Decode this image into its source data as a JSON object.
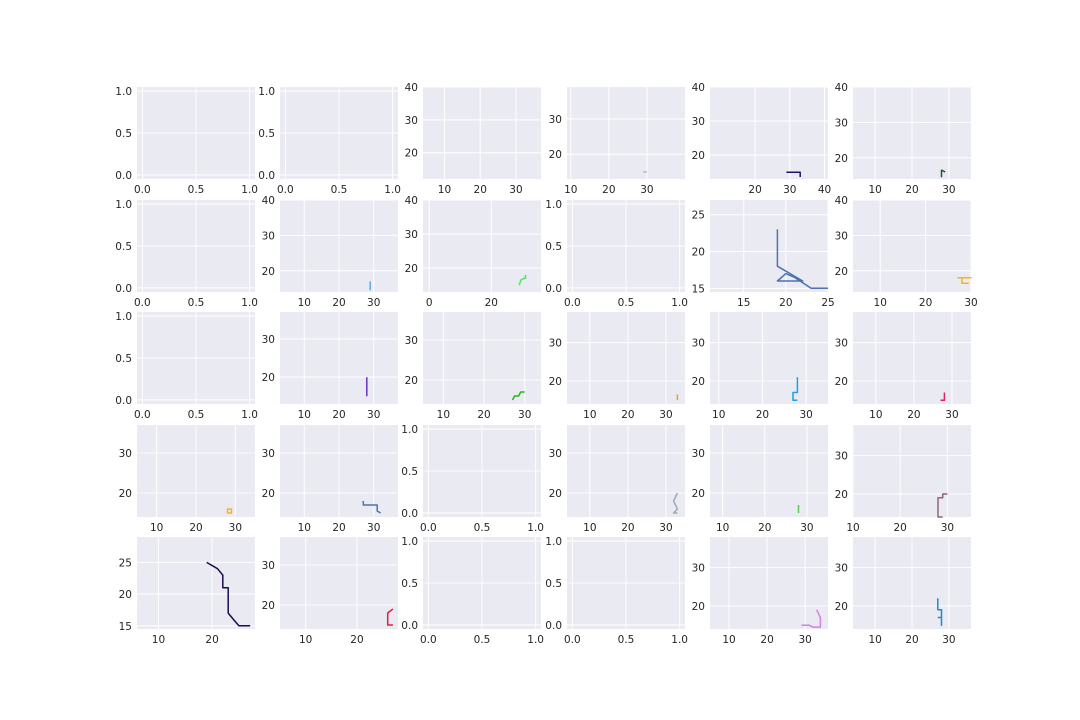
{
  "chart_data": [
    {
      "type": "line",
      "xticks": [
        "0.0",
        "0.5",
        "1.0"
      ],
      "yticks": [
        "0.0",
        "0.5",
        "1.0"
      ],
      "xlim": [
        -0.05,
        1.05
      ],
      "ylim": [
        -0.05,
        1.05
      ],
      "series": []
    },
    {
      "type": "line",
      "xticks": [
        "0.0",
        "0.5",
        "1.0"
      ],
      "yticks": [
        "0.0",
        "0.5",
        "1.0"
      ],
      "xlim": [
        -0.05,
        1.05
      ],
      "ylim": [
        -0.05,
        1.05
      ],
      "series": []
    },
    {
      "type": "line",
      "xticks": [
        "10",
        "20",
        "30"
      ],
      "yticks": [
        "20",
        "30",
        "40"
      ],
      "xlim": [
        4,
        37
      ],
      "ylim": [
        12,
        40
      ],
      "series": []
    },
    {
      "type": "line",
      "xticks": [
        "10",
        "20",
        "30"
      ],
      "yticks": [
        "20",
        "30"
      ],
      "xlim": [
        9,
        40
      ],
      "ylim": [
        13,
        39
      ],
      "series": [
        {
          "color": "#b0b8c0",
          "x": [
            29,
            30
          ],
          "y": [
            15,
            15
          ]
        }
      ]
    },
    {
      "type": "line",
      "xticks": [
        "20",
        "30",
        "40"
      ],
      "yticks": [
        "20",
        "30",
        "40"
      ],
      "xlim": [
        7,
        41
      ],
      "ylim": [
        13,
        40
      ],
      "series": [
        {
          "color": "#1a1464",
          "x": [
            29,
            33,
            33
          ],
          "y": [
            15,
            15,
            13.6
          ]
        }
      ]
    },
    {
      "type": "line",
      "xticks": [
        "10",
        "20",
        "30"
      ],
      "yticks": [
        "20",
        "30",
        "40"
      ],
      "xlim": [
        4,
        36
      ],
      "ylim": [
        14,
        40
      ],
      "series": [
        {
          "color": "#1e5a32",
          "x": [
            28,
            28,
            29
          ],
          "y": [
            14.5,
            16.5,
            16
          ],
          "y2": []
        }
      ]
    },
    {
      "type": "line",
      "xticks": [
        "0.0",
        "0.5",
        "1.0"
      ],
      "yticks": [
        "0.0",
        "0.5",
        "1.0"
      ],
      "xlim": [
        -0.05,
        1.05
      ],
      "ylim": [
        -0.05,
        1.05
      ],
      "series": []
    },
    {
      "type": "line",
      "xticks": [
        "10",
        "20",
        "30"
      ],
      "yticks": [
        "20",
        "30",
        "40"
      ],
      "xlim": [
        3,
        37
      ],
      "ylim": [
        14,
        40
      ],
      "series": [
        {
          "color": "#5aaae6",
          "x": [
            29,
            29
          ],
          "y": [
            14.5,
            17
          ]
        }
      ]
    },
    {
      "type": "line",
      "xticks": [
        "0",
        "20"
      ],
      "yticks": [
        "20",
        "30",
        "40"
      ],
      "xlim": [
        -2,
        36
      ],
      "ylim": [
        13,
        40
      ],
      "series": [
        {
          "color": "#50e650",
          "x": [
            29,
            29.5,
            30.5,
            31,
            31
          ],
          "y": [
            15,
            16.5,
            17,
            17,
            18
          ]
        }
      ]
    },
    {
      "type": "line",
      "xticks": [
        "0.0",
        "0.5",
        "1.0"
      ],
      "yticks": [
        "0.0",
        "0.5",
        "1.0"
      ],
      "xlim": [
        -0.05,
        1.05
      ],
      "ylim": [
        -0.05,
        1.05
      ],
      "series": []
    },
    {
      "type": "line",
      "xticks": [
        "15",
        "20",
        "25"
      ],
      "yticks": [
        "15",
        "20",
        "25"
      ],
      "xlim": [
        11,
        25
      ],
      "ylim": [
        14.5,
        27
      ],
      "series": [
        {
          "color": "#4c72b0",
          "x": [
            19,
            19,
            22,
            19,
            20,
            21,
            23,
            25
          ],
          "y": [
            23,
            18,
            16,
            16,
            17,
            16.5,
            15,
            15
          ]
        }
      ]
    },
    {
      "type": "line",
      "xticks": [
        "10",
        "20",
        "30"
      ],
      "yticks": [
        "20",
        "30",
        "40"
      ],
      "xlim": [
        4,
        30
      ],
      "ylim": [
        14,
        40
      ],
      "series": [
        {
          "color": "#f5b41e",
          "x": [
            27,
            30,
            28,
            28,
            29.5
          ],
          "y": [
            18,
            18,
            18,
            16.5,
            16.5
          ]
        }
      ]
    },
    {
      "type": "line",
      "xticks": [
        "0.0",
        "0.5",
        "1.0"
      ],
      "yticks": [
        "0.0",
        "0.5",
        "1.0"
      ],
      "xlim": [
        -0.05,
        1.05
      ],
      "ylim": [
        -0.05,
        1.05
      ],
      "series": []
    },
    {
      "type": "line",
      "xticks": [
        "10",
        "20",
        "30"
      ],
      "yticks": [
        "20",
        "30"
      ],
      "xlim": [
        3,
        37
      ],
      "ylim": [
        13,
        37
      ],
      "series": [
        {
          "color": "#6432c8",
          "x": [
            28,
            28
          ],
          "y": [
            15,
            20
          ]
        }
      ]
    },
    {
      "type": "line",
      "xticks": [
        "10",
        "20",
        "30"
      ],
      "yticks": [
        "20",
        "30"
      ],
      "xlim": [
        5,
        34
      ],
      "ylim": [
        14,
        37
      ],
      "series": [
        {
          "color": "#28b41e",
          "x": [
            27,
            27.5,
            28.5,
            29,
            30
          ],
          "y": [
            15,
            16,
            16,
            17,
            17
          ]
        }
      ]
    },
    {
      "type": "line",
      "xticks": [
        "10",
        "20",
        "30"
      ],
      "yticks": [
        "20",
        "30"
      ],
      "xlim": [
        4,
        35
      ],
      "ylim": [
        14,
        38
      ],
      "series": [
        {
          "color": "#e6a01e",
          "x": [
            33,
            33
          ],
          "y": [
            15,
            16.5
          ]
        }
      ]
    },
    {
      "type": "line",
      "xticks": [
        "10",
        "20",
        "30"
      ],
      "yticks": [
        "20",
        "30"
      ],
      "xlim": [
        8,
        35
      ],
      "ylim": [
        14,
        38
      ],
      "series": [
        {
          "color": "#1ea0e6",
          "x": [
            28,
            28,
            27,
            27,
            28
          ],
          "y": [
            21,
            17,
            17,
            15,
            15
          ]
        }
      ]
    },
    {
      "type": "line",
      "xticks": [
        "10",
        "20",
        "30"
      ],
      "yticks": [
        "20",
        "30"
      ],
      "xlim": [
        4,
        35
      ],
      "ylim": [
        14,
        38
      ],
      "series": [
        {
          "color": "#e61e6e",
          "x": [
            27,
            28,
            28
          ],
          "y": [
            15,
            15,
            17
          ]
        }
      ]
    },
    {
      "type": "line",
      "xticks": [
        "10",
        "20",
        "30"
      ],
      "yticks": [
        "20",
        "30"
      ],
      "xlim": [
        5,
        35
      ],
      "ylim": [
        14,
        37
      ],
      "series": [
        {
          "color": "#f5b41e",
          "x": [
            28,
            29,
            29,
            28,
            28
          ],
          "y": [
            15,
            15,
            16,
            16,
            15
          ]
        }
      ]
    },
    {
      "type": "line",
      "xticks": [
        "10",
        "20",
        "30"
      ],
      "yticks": [
        "20",
        "30"
      ],
      "xlim": [
        3,
        37
      ],
      "ylim": [
        14,
        37
      ],
      "series": [
        {
          "color": "#4c72b0",
          "x": [
            27,
            27,
            31,
            31,
            32
          ],
          "y": [
            18,
            17,
            17,
            15.5,
            15
          ]
        }
      ]
    },
    {
      "type": "line",
      "xticks": [
        "0.0",
        "0.5",
        "1.0"
      ],
      "yticks": [
        "0.0",
        "0.5",
        "1.0"
      ],
      "xlim": [
        -0.05,
        1.05
      ],
      "ylim": [
        -0.05,
        1.05
      ],
      "series": []
    },
    {
      "type": "line",
      "xticks": [
        "10",
        "20",
        "30"
      ],
      "yticks": [
        "20",
        "30"
      ],
      "xlim": [
        4,
        35
      ],
      "ylim": [
        14,
        37
      ],
      "series": [
        {
          "color": "#a0aab4",
          "x": [
            33,
            32,
            33,
            32,
            33
          ],
          "y": [
            20,
            18,
            16,
            15,
            15
          ]
        }
      ]
    },
    {
      "type": "line",
      "xticks": [
        "10",
        "20",
        "30"
      ],
      "yticks": [
        "20",
        "30"
      ],
      "xlim": [
        7,
        35
      ],
      "ylim": [
        14,
        37
      ],
      "series": [
        {
          "color": "#50d250",
          "x": [
            28,
            28
          ],
          "y": [
            15,
            17
          ]
        }
      ]
    },
    {
      "type": "line",
      "xticks": [
        "10",
        "20",
        "30"
      ],
      "yticks": [
        "20",
        "30"
      ],
      "xlim": [
        10,
        35
      ],
      "ylim": [
        14,
        38
      ],
      "series": [
        {
          "color": "#966478",
          "x": [
            29,
            28,
            28,
            29,
            29,
            30
          ],
          "y": [
            14,
            14,
            19,
            19,
            20,
            20
          ]
        }
      ]
    },
    {
      "type": "line",
      "xticks": [
        "10",
        "20"
      ],
      "yticks": [
        "15",
        "20",
        "25"
      ],
      "xlim": [
        6,
        28
      ],
      "ylim": [
        14.5,
        29
      ],
      "series": [
        {
          "color": "#1e0a50",
          "x": [
            19,
            21,
            22,
            22,
            23,
            23,
            24,
            24,
            25,
            25,
            26,
            27,
            25
          ],
          "y": [
            25,
            24,
            23,
            21,
            21,
            17,
            16,
            16,
            15,
            15,
            15,
            15,
            15
          ]
        }
      ]
    },
    {
      "type": "line",
      "xticks": [
        "10",
        "20"
      ],
      "yticks": [
        "20",
        "30"
      ],
      "xlim": [
        5,
        28
      ],
      "ylim": [
        14,
        37
      ],
      "series": [
        {
          "color": "#e61e3c",
          "x": [
            27,
            26,
            26,
            27
          ],
          "y": [
            15,
            15,
            18,
            19
          ]
        }
      ]
    },
    {
      "type": "line",
      "xticks": [
        "0.0",
        "0.5",
        "1.0"
      ],
      "yticks": [
        "0.0",
        "0.5",
        "1.0"
      ],
      "xlim": [
        -0.05,
        1.05
      ],
      "ylim": [
        -0.05,
        1.05
      ],
      "series": []
    },
    {
      "type": "line",
      "xticks": [
        "0.0",
        "0.5",
        "1.0"
      ],
      "yticks": [
        "0.0",
        "0.5",
        "1.0"
      ],
      "xlim": [
        -0.05,
        1.05
      ],
      "ylim": [
        -0.05,
        1.05
      ],
      "series": []
    },
    {
      "type": "line",
      "xticks": [
        "10",
        "20",
        "30"
      ],
      "yticks": [
        "20",
        "30"
      ],
      "xlim": [
        5,
        36
      ],
      "ylim": [
        14,
        38
      ],
      "series": [
        {
          "color": "#d282e6",
          "x": [
            29,
            31,
            32,
            34,
            34,
            33
          ],
          "y": [
            15,
            15,
            14.5,
            14.5,
            17,
            19
          ]
        }
      ]
    },
    {
      "type": "line",
      "xticks": [
        "10",
        "20",
        "30"
      ],
      "yticks": [
        "20",
        "30"
      ],
      "xlim": [
        4,
        36
      ],
      "ylim": [
        14,
        38
      ],
      "series": [
        {
          "color": "#1e8cc8",
          "x": [
            27,
            27,
            28,
            28,
            28,
            27
          ],
          "y": [
            22,
            19,
            19,
            15,
            17,
            17
          ]
        }
      ]
    }
  ]
}
